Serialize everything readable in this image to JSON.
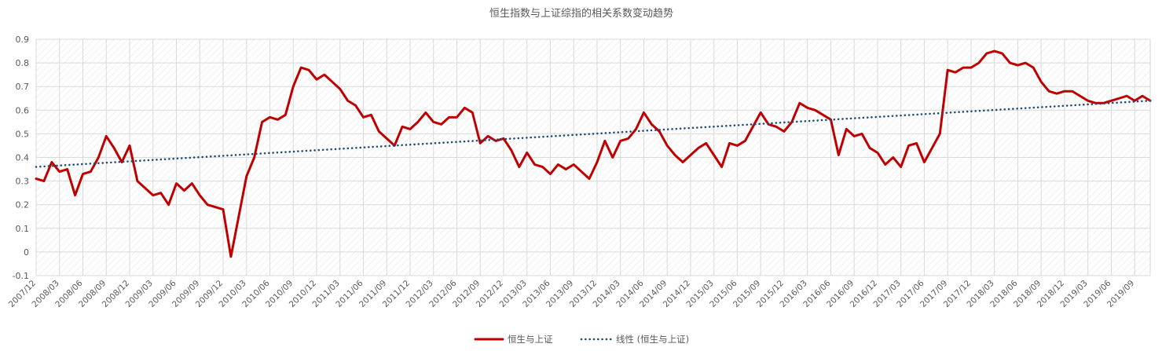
{
  "chart_data": {
    "type": "line",
    "title": "恒生指数与上证综指的相关系数变动趋势",
    "xlabel": "",
    "ylabel": "",
    "ylim": [
      -0.1,
      0.9
    ],
    "yticks": [
      "0.9",
      "0.8",
      "0.7",
      "0.6",
      "0.5",
      "0.4",
      "0.3",
      "0.2",
      "0.1",
      "0",
      "-0.1"
    ],
    "xlim": [
      "2007/12",
      "2019/11"
    ],
    "xticks": [
      "2007/12",
      "2008/03",
      "2008/06",
      "2008/09",
      "2008/12",
      "2009/03",
      "2009/06",
      "2009/09",
      "2009/12",
      "2010/03",
      "2010/06",
      "2010/09",
      "2010/12",
      "2011/03",
      "2011/06",
      "2011/09",
      "2011/12",
      "2012/03",
      "2012/06",
      "2012/09",
      "2012/12",
      "2013/03",
      "2013/06",
      "2013/09",
      "2013/12",
      "2014/03",
      "2014/06",
      "2014/09",
      "2014/12",
      "2015/03",
      "2015/06",
      "2015/09",
      "2015/12",
      "2016/03",
      "2016/06",
      "2016/09",
      "2016/12",
      "2017/03",
      "2017/06",
      "2017/09",
      "2017/12",
      "2018/03",
      "2018/06",
      "2018/09",
      "2018/12",
      "2019/03",
      "2019/06",
      "2019/09"
    ],
    "grid": true,
    "legend_position": "bottom",
    "series": [
      {
        "name": "恒生与上证",
        "color": "#C00000",
        "style": "solid",
        "points": [
          [
            "2007/12",
            0.31
          ],
          [
            "2008/01",
            0.3
          ],
          [
            "2008/02",
            0.38
          ],
          [
            "2008/03",
            0.34
          ],
          [
            "2008/04",
            0.35
          ],
          [
            "2008/05",
            0.24
          ],
          [
            "2008/06",
            0.33
          ],
          [
            "2008/07",
            0.34
          ],
          [
            "2008/08",
            0.4
          ],
          [
            "2008/09",
            0.49
          ],
          [
            "2008/10",
            0.44
          ],
          [
            "2008/11",
            0.38
          ],
          [
            "2008/12",
            0.45
          ],
          [
            "2009/01",
            0.3
          ],
          [
            "2009/02",
            0.27
          ],
          [
            "2009/03",
            0.24
          ],
          [
            "2009/04",
            0.25
          ],
          [
            "2009/05",
            0.2
          ],
          [
            "2009/06",
            0.29
          ],
          [
            "2009/07",
            0.26
          ],
          [
            "2009/08",
            0.29
          ],
          [
            "2009/09",
            0.24
          ],
          [
            "2009/10",
            0.2
          ],
          [
            "2009/11",
            0.19
          ],
          [
            "2009/12",
            0.18
          ],
          [
            "2010/01",
            -0.02
          ],
          [
            "2010/02",
            0.15
          ],
          [
            "2010/03",
            0.32
          ],
          [
            "2010/04",
            0.4
          ],
          [
            "2010/05",
            0.55
          ],
          [
            "2010/06",
            0.57
          ],
          [
            "2010/07",
            0.56
          ],
          [
            "2010/08",
            0.58
          ],
          [
            "2010/09",
            0.7
          ],
          [
            "2010/10",
            0.78
          ],
          [
            "2010/11",
            0.77
          ],
          [
            "2010/12",
            0.73
          ],
          [
            "2011/01",
            0.75
          ],
          [
            "2011/02",
            0.72
          ],
          [
            "2011/03",
            0.69
          ],
          [
            "2011/04",
            0.64
          ],
          [
            "2011/05",
            0.62
          ],
          [
            "2011/06",
            0.57
          ],
          [
            "2011/07",
            0.58
          ],
          [
            "2011/08",
            0.51
          ],
          [
            "2011/09",
            0.48
          ],
          [
            "2011/10",
            0.45
          ],
          [
            "2011/11",
            0.53
          ],
          [
            "2011/12",
            0.52
          ],
          [
            "2012/01",
            0.55
          ],
          [
            "2012/02",
            0.59
          ],
          [
            "2012/03",
            0.55
          ],
          [
            "2012/04",
            0.54
          ],
          [
            "2012/05",
            0.57
          ],
          [
            "2012/06",
            0.57
          ],
          [
            "2012/07",
            0.61
          ],
          [
            "2012/08",
            0.59
          ],
          [
            "2012/09",
            0.46
          ],
          [
            "2012/10",
            0.49
          ],
          [
            "2012/11",
            0.47
          ],
          [
            "2012/12",
            0.48
          ],
          [
            "2013/01",
            0.43
          ],
          [
            "2013/02",
            0.36
          ],
          [
            "2013/03",
            0.42
          ],
          [
            "2013/04",
            0.37
          ],
          [
            "2013/05",
            0.36
          ],
          [
            "2013/06",
            0.33
          ],
          [
            "2013/07",
            0.37
          ],
          [
            "2013/08",
            0.35
          ],
          [
            "2013/09",
            0.37
          ],
          [
            "2013/10",
            0.34
          ],
          [
            "2013/11",
            0.31
          ],
          [
            "2013/12",
            0.38
          ],
          [
            "2014/01",
            0.47
          ],
          [
            "2014/02",
            0.4
          ],
          [
            "2014/03",
            0.47
          ],
          [
            "2014/04",
            0.48
          ],
          [
            "2014/05",
            0.52
          ],
          [
            "2014/06",
            0.59
          ],
          [
            "2014/07",
            0.54
          ],
          [
            "2014/08",
            0.51
          ],
          [
            "2014/09",
            0.45
          ],
          [
            "2014/10",
            0.41
          ],
          [
            "2014/11",
            0.38
          ],
          [
            "2014/12",
            0.41
          ],
          [
            "2015/01",
            0.44
          ],
          [
            "2015/02",
            0.46
          ],
          [
            "2015/03",
            0.41
          ],
          [
            "2015/04",
            0.36
          ],
          [
            "2015/05",
            0.46
          ],
          [
            "2015/06",
            0.45
          ],
          [
            "2015/07",
            0.47
          ],
          [
            "2015/08",
            0.53
          ],
          [
            "2015/09",
            0.59
          ],
          [
            "2015/10",
            0.54
          ],
          [
            "2015/11",
            0.53
          ],
          [
            "2015/12",
            0.51
          ],
          [
            "2016/01",
            0.55
          ],
          [
            "2016/02",
            0.63
          ],
          [
            "2016/03",
            0.61
          ],
          [
            "2016/04",
            0.6
          ],
          [
            "2016/05",
            0.58
          ],
          [
            "2016/06",
            0.56
          ],
          [
            "2016/07",
            0.41
          ],
          [
            "2016/08",
            0.52
          ],
          [
            "2016/09",
            0.49
          ],
          [
            "2016/10",
            0.5
          ],
          [
            "2016/11",
            0.44
          ],
          [
            "2016/12",
            0.42
          ],
          [
            "2017/01",
            0.37
          ],
          [
            "2017/02",
            0.4
          ],
          [
            "2017/03",
            0.36
          ],
          [
            "2017/04",
            0.45
          ],
          [
            "2017/05",
            0.46
          ],
          [
            "2017/06",
            0.38
          ],
          [
            "2017/07",
            0.44
          ],
          [
            "2017/08",
            0.5
          ],
          [
            "2017/09",
            0.77
          ],
          [
            "2017/10",
            0.76
          ],
          [
            "2017/11",
            0.78
          ],
          [
            "2017/12",
            0.78
          ],
          [
            "2018/01",
            0.8
          ],
          [
            "2018/02",
            0.84
          ],
          [
            "2018/03",
            0.85
          ],
          [
            "2018/04",
            0.84
          ],
          [
            "2018/05",
            0.8
          ],
          [
            "2018/06",
            0.79
          ],
          [
            "2018/07",
            0.8
          ],
          [
            "2018/08",
            0.78
          ],
          [
            "2018/09",
            0.72
          ],
          [
            "2018/10",
            0.68
          ],
          [
            "2018/11",
            0.67
          ],
          [
            "2018/12",
            0.68
          ],
          [
            "2019/01",
            0.68
          ],
          [
            "2019/02",
            0.66
          ],
          [
            "2019/03",
            0.64
          ],
          [
            "2019/04",
            0.63
          ],
          [
            "2019/05",
            0.63
          ],
          [
            "2019/06",
            0.64
          ],
          [
            "2019/07",
            0.65
          ],
          [
            "2019/08",
            0.66
          ],
          [
            "2019/09",
            0.64
          ],
          [
            "2019/10",
            0.66
          ],
          [
            "2019/11",
            0.64
          ]
        ]
      },
      {
        "name": "线性 (恒生与上证)",
        "color": "#1F4E79",
        "style": "dotted",
        "points": [
          [
            "2007/12",
            0.36
          ],
          [
            "2019/11",
            0.64
          ]
        ]
      }
    ]
  }
}
